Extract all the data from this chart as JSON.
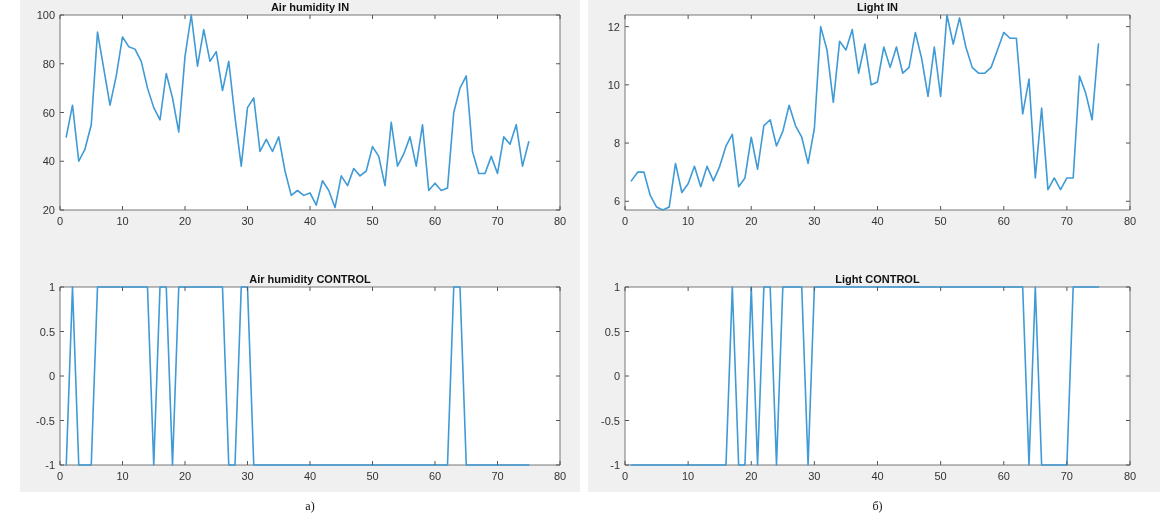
{
  "chart_data": [
    {
      "type": "line",
      "title": "Air humidity IN",
      "x": [
        1,
        2,
        3,
        4,
        5,
        6,
        7,
        8,
        9,
        10,
        11,
        12,
        13,
        14,
        15,
        16,
        17,
        18,
        19,
        20,
        21,
        22,
        23,
        24,
        25,
        26,
        27,
        28,
        29,
        30,
        31,
        32,
        33,
        34,
        35,
        36,
        37,
        38,
        39,
        40,
        41,
        42,
        43,
        44,
        45,
        46,
        47,
        48,
        49,
        50,
        51,
        52,
        53,
        54,
        55,
        56,
        57,
        58,
        59,
        60,
        61,
        62,
        63,
        64,
        65,
        66,
        67,
        68,
        69,
        70,
        71,
        72,
        73,
        74,
        75
      ],
      "series": [
        {
          "color": "#3f9ad6",
          "values": [
            50,
            63,
            40,
            45,
            55,
            93,
            78,
            63,
            75,
            91,
            87,
            86,
            81,
            70,
            62,
            57,
            76,
            66,
            52,
            83,
            100,
            79,
            94,
            81,
            85,
            69,
            81,
            58,
            38,
            62,
            66,
            44,
            49,
            44,
            50,
            36,
            26,
            28,
            26,
            27,
            22,
            32,
            28,
            21,
            34,
            30,
            37,
            34,
            36,
            46,
            42,
            30,
            56,
            38,
            43,
            50,
            38,
            55,
            28,
            31,
            28,
            29,
            60,
            70,
            75,
            44,
            35,
            35,
            42,
            35,
            50,
            47,
            55,
            38,
            48
          ]
        }
      ],
      "xlim": [
        0,
        80
      ],
      "xticks": [
        0,
        10,
        20,
        30,
        40,
        50,
        60,
        70,
        80
      ],
      "ylim": [
        20,
        100
      ],
      "yticks": [
        20,
        40,
        60,
        80,
        100
      ],
      "grid": false
    },
    {
      "type": "line",
      "title": "Light IN",
      "x": [
        1,
        2,
        3,
        4,
        5,
        6,
        7,
        8,
        9,
        10,
        11,
        12,
        13,
        14,
        15,
        16,
        17,
        18,
        19,
        20,
        21,
        22,
        23,
        24,
        25,
        26,
        27,
        28,
        29,
        30,
        31,
        32,
        33,
        34,
        35,
        36,
        37,
        38,
        39,
        40,
        41,
        42,
        43,
        44,
        45,
        46,
        47,
        48,
        49,
        50,
        51,
        52,
        53,
        54,
        55,
        56,
        57,
        58,
        59,
        60,
        61,
        62,
        63,
        64,
        65,
        66,
        67,
        68,
        69,
        70,
        71,
        72,
        73,
        74,
        75
      ],
      "series": [
        {
          "color": "#3f9ad6",
          "values": [
            6.7,
            7.0,
            7.0,
            6.2,
            5.8,
            5.7,
            5.8,
            7.3,
            6.3,
            6.6,
            7.2,
            6.5,
            7.2,
            6.7,
            7.2,
            7.9,
            8.3,
            6.5,
            6.8,
            8.2,
            7.1,
            8.6,
            8.8,
            7.9,
            8.4,
            9.3,
            8.6,
            8.2,
            7.3,
            8.5,
            12.0,
            11.2,
            9.4,
            11.5,
            11.2,
            11.9,
            10.4,
            11.4,
            10.0,
            10.1,
            11.3,
            10.6,
            11.3,
            10.4,
            10.6,
            11.8,
            10.9,
            9.6,
            11.3,
            9.6,
            12.4,
            11.4,
            12.3,
            11.3,
            10.6,
            10.4,
            10.4,
            10.6,
            11.2,
            11.8,
            11.6,
            11.6,
            9.0,
            10.2,
            6.8,
            9.2,
            6.4,
            6.8,
            6.4,
            6.8,
            6.8,
            10.3,
            9.7,
            8.8,
            11.4
          ]
        }
      ],
      "xlim": [
        0,
        80
      ],
      "xticks": [
        0,
        10,
        20,
        30,
        40,
        50,
        60,
        70,
        80
      ],
      "ylim": [
        5.7,
        12.4
      ],
      "yticks": [
        6,
        8,
        10,
        12
      ],
      "grid": false
    },
    {
      "type": "line",
      "title": "Air humidity CONTROL",
      "annotations": [
        "a)"
      ],
      "x": [
        1,
        2,
        3,
        4,
        5,
        6,
        7,
        8,
        9,
        10,
        11,
        12,
        13,
        14,
        15,
        16,
        17,
        18,
        19,
        20,
        21,
        22,
        23,
        24,
        25,
        26,
        27,
        28,
        29,
        30,
        31,
        32,
        33,
        34,
        35,
        36,
        37,
        38,
        39,
        40,
        41,
        42,
        43,
        44,
        45,
        46,
        47,
        48,
        49,
        50,
        51,
        52,
        53,
        54,
        55,
        56,
        57,
        58,
        59,
        60,
        61,
        62,
        63,
        64,
        65,
        66,
        67,
        68,
        69,
        70,
        71,
        72,
        73,
        74,
        75
      ],
      "series": [
        {
          "color": "#3f9ad6",
          "values": [
            -1,
            1,
            -1,
            -1,
            -1,
            1,
            1,
            1,
            1,
            1,
            1,
            1,
            1,
            1,
            -1,
            1,
            1,
            -1,
            1,
            1,
            1,
            1,
            1,
            1,
            1,
            1,
            -1,
            -1,
            1,
            1,
            -1,
            -1,
            -1,
            -1,
            -1,
            -1,
            -1,
            -1,
            -1,
            -1,
            -1,
            -1,
            -1,
            -1,
            -1,
            -1,
            -1,
            -1,
            -1,
            -1,
            -1,
            -1,
            -1,
            -1,
            -1,
            -1,
            -1,
            -1,
            -1,
            -1,
            -1,
            -1,
            1,
            1,
            -1,
            -1,
            -1,
            -1,
            -1,
            -1,
            -1,
            -1,
            -1,
            -1,
            -1
          ]
        }
      ],
      "xlim": [
        0,
        80
      ],
      "xticks": [
        0,
        10,
        20,
        30,
        40,
        50,
        60,
        70,
        80
      ],
      "ylim": [
        -1,
        1
      ],
      "yticks": [
        -1,
        -0.5,
        0,
        0.5,
        1
      ],
      "grid": false
    },
    {
      "type": "line",
      "title": "Light CONTROL",
      "annotations": [
        "б)"
      ],
      "x": [
        1,
        2,
        3,
        4,
        5,
        6,
        7,
        8,
        9,
        10,
        11,
        12,
        13,
        14,
        15,
        16,
        17,
        18,
        19,
        20,
        21,
        22,
        23,
        24,
        25,
        26,
        27,
        28,
        29,
        30,
        31,
        32,
        33,
        34,
        35,
        36,
        37,
        38,
        39,
        40,
        41,
        42,
        43,
        44,
        45,
        46,
        47,
        48,
        49,
        50,
        51,
        52,
        53,
        54,
        55,
        56,
        57,
        58,
        59,
        60,
        61,
        62,
        63,
        64,
        65,
        66,
        67,
        68,
        69,
        70,
        71,
        72,
        73,
        74,
        75
      ],
      "series": [
        {
          "color": "#3f9ad6",
          "values": [
            -1,
            -1,
            -1,
            -1,
            -1,
            -1,
            -1,
            -1,
            -1,
            -1,
            -1,
            -1,
            -1,
            -1,
            -1,
            -1,
            1,
            -1,
            -1,
            1,
            -1,
            1,
            1,
            -1,
            1,
            1,
            1,
            1,
            -1,
            1,
            1,
            1,
            1,
            1,
            1,
            1,
            1,
            1,
            1,
            1,
            1,
            1,
            1,
            1,
            1,
            1,
            1,
            1,
            1,
            1,
            1,
            1,
            1,
            1,
            1,
            1,
            1,
            1,
            1,
            1,
            1,
            1,
            1,
            -1,
            1,
            -1,
            -1,
            -1,
            -1,
            -1,
            1,
            1,
            1,
            1,
            1
          ]
        }
      ],
      "xlim": [
        0,
        80
      ],
      "xticks": [
        0,
        10,
        20,
        30,
        40,
        50,
        60,
        70,
        80
      ],
      "ylim": [
        -1,
        1
      ],
      "yticks": [
        -1,
        -0.5,
        0,
        0.5,
        1
      ],
      "grid": false
    }
  ]
}
